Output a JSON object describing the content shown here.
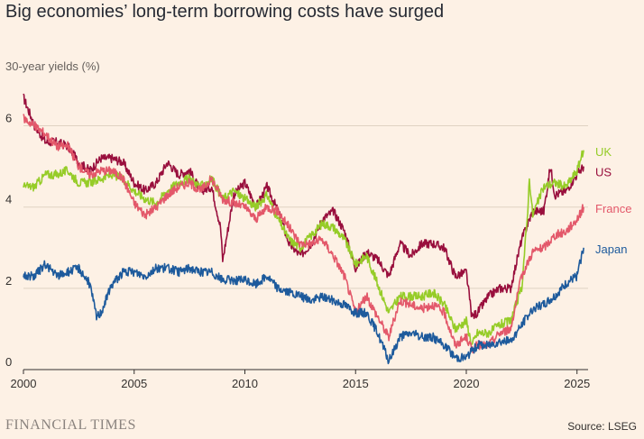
{
  "title": "Big economies’ long-term borrowing costs have surged",
  "subtitle": "30-year yields (%)",
  "footer": {
    "brand": "FINANCIAL TIMES",
    "source": "Source: LSEG"
  },
  "chart_data": {
    "type": "line",
    "title": "Big economies’ long-term borrowing costs have surged",
    "ylabel": "30-year yields (%)",
    "xlabel": "",
    "xlim": [
      2000,
      2025.5
    ],
    "ylim": [
      0,
      6.5
    ],
    "yticks": [
      0,
      2,
      4,
      6
    ],
    "xticks": [
      2000,
      2005,
      2010,
      2015,
      2020,
      2025
    ],
    "grid": true,
    "legend": "direct labels at line ends (right)",
    "series": [
      {
        "name": "US",
        "color": "#990f3d",
        "x": [
          2000,
          2000.5,
          2001,
          2001.5,
          2002,
          2002.5,
          2003,
          2003.5,
          2004,
          2004.5,
          2005,
          2005.5,
          2006,
          2006.5,
          2007,
          2007.5,
          2008,
          2008.5,
          2008.9,
          2009.0,
          2009.5,
          2010,
          2010.5,
          2011,
          2011.5,
          2012,
          2012.5,
          2013,
          2013.5,
          2014,
          2014.5,
          2015,
          2015.5,
          2016,
          2016.5,
          2017,
          2017.5,
          2018,
          2018.5,
          2019,
          2019.5,
          2020,
          2020.25,
          2020.5,
          2021,
          2021.5,
          2022,
          2022.5,
          2023,
          2023.5,
          2023.8,
          2024,
          2024.5,
          2025,
          2025.3
        ],
        "values": [
          6.7,
          6.0,
          5.6,
          5.6,
          5.5,
          5.1,
          4.9,
          5.2,
          5.2,
          5.1,
          4.6,
          4.4,
          4.6,
          5.1,
          4.8,
          4.9,
          4.4,
          4.5,
          3.5,
          2.7,
          4.3,
          4.6,
          4.0,
          4.5,
          3.9,
          3.1,
          2.8,
          3.1,
          3.7,
          3.9,
          3.4,
          2.5,
          2.9,
          2.7,
          2.3,
          3.1,
          2.8,
          3.1,
          3.1,
          3.0,
          2.3,
          2.4,
          1.3,
          1.4,
          1.8,
          2.0,
          2.0,
          3.2,
          3.9,
          3.9,
          5.0,
          4.3,
          4.4,
          4.8,
          5.0
        ]
      },
      {
        "name": "UK",
        "color": "#96cc28",
        "x": [
          2000,
          2000.5,
          2001,
          2001.5,
          2002,
          2002.5,
          2003,
          2003.5,
          2004,
          2004.5,
          2005,
          2005.5,
          2006,
          2006.5,
          2007,
          2007.5,
          2008,
          2008.5,
          2009,
          2009.5,
          2010,
          2010.5,
          2011,
          2011.5,
          2012,
          2012.5,
          2013,
          2013.5,
          2014,
          2014.5,
          2015,
          2015.5,
          2016,
          2016.5,
          2017,
          2017.5,
          2018,
          2018.5,
          2019,
          2019.5,
          2020,
          2020.25,
          2020.5,
          2021,
          2021.5,
          2022,
          2022.5,
          2022.75,
          2022.85,
          2023,
          2023.5,
          2024,
          2024.5,
          2025,
          2025.3
        ],
        "values": [
          4.5,
          4.5,
          4.8,
          4.8,
          4.9,
          4.6,
          4.6,
          4.7,
          4.8,
          4.7,
          4.4,
          4.2,
          4.1,
          4.4,
          4.6,
          4.7,
          4.5,
          4.7,
          4.2,
          4.4,
          4.2,
          4.0,
          4.3,
          3.7,
          3.2,
          3.0,
          3.3,
          3.6,
          3.5,
          3.2,
          2.6,
          2.8,
          2.1,
          1.4,
          1.8,
          1.8,
          1.8,
          1.9,
          1.6,
          1.0,
          1.2,
          0.6,
          0.9,
          0.9,
          1.1,
          1.2,
          2.0,
          3.7,
          4.7,
          3.8,
          4.5,
          4.6,
          4.5,
          4.9,
          5.4
        ]
      },
      {
        "name": "France",
        "color": "#e3586a",
        "x": [
          2000,
          2000.5,
          2001,
          2001.5,
          2002,
          2002.5,
          2003,
          2003.5,
          2004,
          2004.5,
          2005,
          2005.5,
          2006,
          2006.5,
          2007,
          2007.5,
          2008,
          2008.5,
          2009,
          2009.5,
          2010,
          2010.5,
          2011,
          2011.5,
          2012,
          2012.5,
          2013,
          2013.5,
          2014,
          2014.5,
          2015,
          2015.5,
          2016,
          2016.5,
          2017,
          2017.5,
          2018,
          2018.5,
          2019,
          2019.5,
          2020,
          2020.25,
          2020.5,
          2021,
          2021.5,
          2022,
          2022.5,
          2023,
          2023.5,
          2024,
          2024.5,
          2025,
          2025.3
        ],
        "values": [
          6.2,
          6.0,
          5.8,
          5.5,
          5.5,
          5.0,
          4.8,
          4.9,
          4.9,
          4.7,
          4.1,
          3.8,
          4.0,
          4.3,
          4.5,
          4.6,
          4.4,
          4.7,
          4.2,
          4.1,
          4.0,
          3.7,
          4.0,
          3.9,
          3.5,
          3.1,
          3.1,
          3.2,
          2.8,
          2.3,
          1.4,
          1.8,
          1.3,
          0.8,
          1.7,
          1.6,
          1.5,
          1.6,
          1.4,
          0.6,
          0.8,
          0.5,
          0.6,
          0.6,
          0.9,
          1.0,
          2.3,
          2.9,
          3.0,
          3.3,
          3.4,
          3.7,
          4.0
        ]
      },
      {
        "name": "Japan",
        "color": "#1d5a9c",
        "x": [
          2000,
          2000.5,
          2001,
          2001.5,
          2002,
          2002.5,
          2003,
          2003.3,
          2003.5,
          2004,
          2004.5,
          2005,
          2005.5,
          2006,
          2006.5,
          2007,
          2007.5,
          2008,
          2008.5,
          2009,
          2009.5,
          2010,
          2010.5,
          2011,
          2011.5,
          2012,
          2012.5,
          2013,
          2013.5,
          2014,
          2014.5,
          2015,
          2015.5,
          2016,
          2016.5,
          2017,
          2017.5,
          2018,
          2018.5,
          2019,
          2019.5,
          2020,
          2020.5,
          2021,
          2021.5,
          2022,
          2022.5,
          2023,
          2023.5,
          2024,
          2024.5,
          2025,
          2025.3
        ],
        "values": [
          2.3,
          2.3,
          2.6,
          2.3,
          2.4,
          2.5,
          2.1,
          1.3,
          1.4,
          2.1,
          2.4,
          2.4,
          2.3,
          2.5,
          2.5,
          2.4,
          2.5,
          2.4,
          2.4,
          2.2,
          2.2,
          2.2,
          2.1,
          2.3,
          2.0,
          1.9,
          1.8,
          1.7,
          1.8,
          1.7,
          1.6,
          1.4,
          1.4,
          0.9,
          0.2,
          0.8,
          0.9,
          0.8,
          0.8,
          0.6,
          0.3,
          0.3,
          0.6,
          0.6,
          0.7,
          0.7,
          1.1,
          1.5,
          1.6,
          1.8,
          2.1,
          2.3,
          3.0
        ]
      }
    ]
  }
}
